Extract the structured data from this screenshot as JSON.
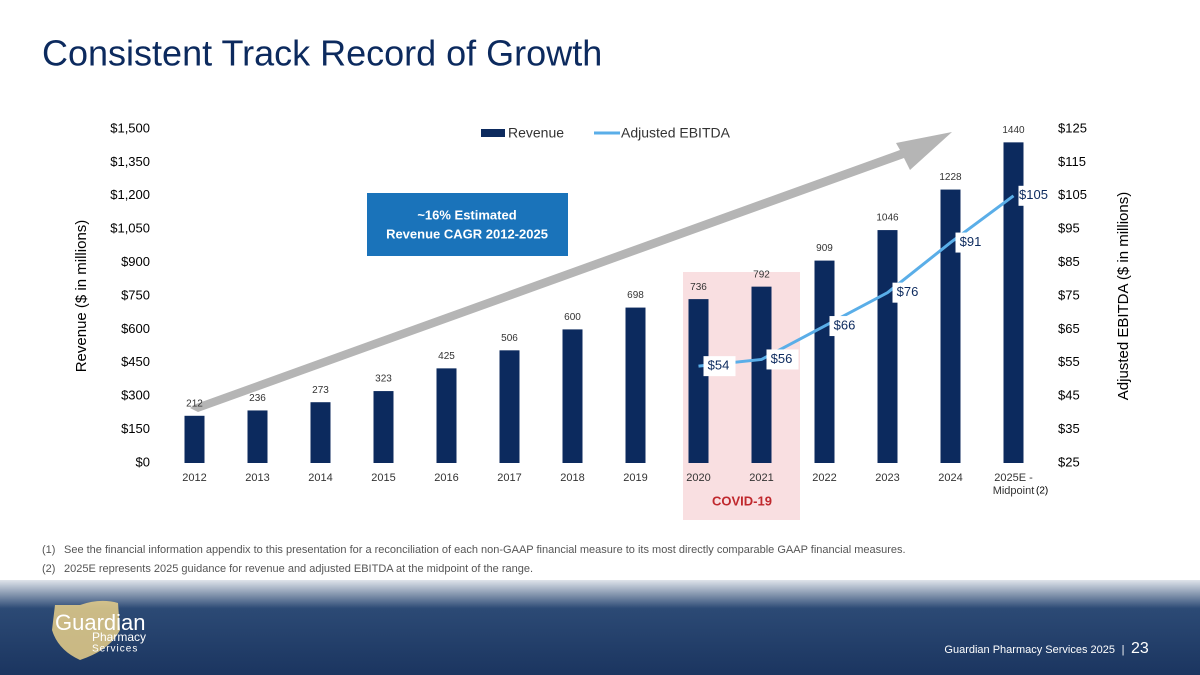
{
  "title": "Consistent Track Record of Growth",
  "chart_data": {
    "type": "bar-line",
    "categories": [
      "2012",
      "2013",
      "2014",
      "2015",
      "2016",
      "2017",
      "2018",
      "2019",
      "2020",
      "2021",
      "2022",
      "2023",
      "2024",
      "2025E - Midpoint"
    ],
    "series": [
      {
        "name": "Revenue",
        "type": "bar",
        "color": "#0c2a5e",
        "values": [
          212,
          236,
          273,
          323,
          425,
          506,
          600,
          698,
          736,
          792,
          909,
          1046,
          1228,
          1440
        ]
      },
      {
        "name": "Adjusted EBITDA",
        "type": "line",
        "axis": "y2",
        "color": "#5aaee8",
        "values": [
          null,
          null,
          null,
          null,
          null,
          null,
          null,
          null,
          54,
          56,
          66,
          76,
          91,
          105
        ],
        "value_labels": [
          null,
          null,
          null,
          null,
          null,
          null,
          null,
          null,
          "$54",
          "$56",
          "$66",
          "$76",
          "$91",
          "$105"
        ]
      }
    ],
    "ylabel": "Revenue ($ in millions)",
    "y2label": "Adjusted EBITDA  ($ in millions)",
    "ylim": [
      0,
      1500
    ],
    "yticks": [
      {
        "value": 0,
        "label": "$0"
      },
      {
        "value": 150,
        "label": "$150"
      },
      {
        "value": 300,
        "label": "$300"
      },
      {
        "value": 450,
        "label": "$450"
      },
      {
        "value": 600,
        "label": "$600"
      },
      {
        "value": 750,
        "label": "$750"
      },
      {
        "value": 900,
        "label": "$900"
      },
      {
        "value": 1050,
        "label": "$1,050"
      },
      {
        "value": 1200,
        "label": "$1,200"
      },
      {
        "value": 1350,
        "label": "$1,350"
      },
      {
        "value": 1500,
        "label": "$1,500"
      }
    ],
    "y2lim": [
      25,
      125
    ],
    "y2ticks": [
      {
        "value": 25,
        "label": "$25"
      },
      {
        "value": 35,
        "label": "$35"
      },
      {
        "value": 45,
        "label": "$45"
      },
      {
        "value": 55,
        "label": "$55"
      },
      {
        "value": 65,
        "label": "$65"
      },
      {
        "value": 75,
        "label": "$75"
      },
      {
        "value": 85,
        "label": "$85"
      },
      {
        "value": 95,
        "label": "$95"
      },
      {
        "value": 105,
        "label": "$105"
      },
      {
        "value": 115,
        "label": "$115"
      },
      {
        "value": 125,
        "label": "$125"
      }
    ],
    "legend": "top",
    "callout": [
      "~16%  Estimated",
      "Revenue CAGR 2012-2025"
    ],
    "shaded_label": "COVID-19",
    "category_note": "(2)"
  },
  "footnotes": [
    {
      "marker": "(1)",
      "text": "See the financial information appendix to this presentation for a reconciliation of each non-GAAP financial measure to its most directly comparable GAAP financial measures."
    },
    {
      "marker": "(2)",
      "text": "2025E represents 2025 guidance for revenue and adjusted EBITDA at the midpoint of the range."
    }
  ],
  "logo": {
    "name": "Guardian",
    "line2": "Pharmacy",
    "line3": "Services"
  },
  "footer": {
    "text": "Guardian Pharmacy Services 2025",
    "separator": "|",
    "page": "23"
  }
}
